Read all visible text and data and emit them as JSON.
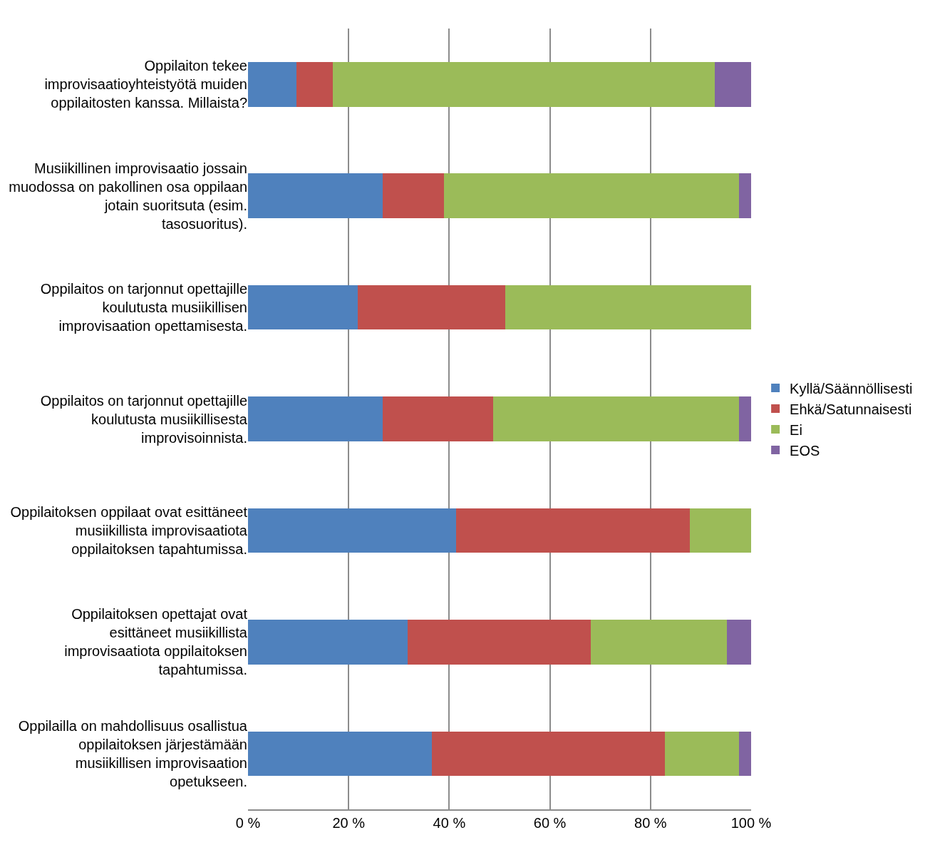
{
  "chart_data": {
    "type": "bar",
    "orientation": "horizontal",
    "stacked": true,
    "categories": [
      "Oppilaiton tekee improvisaatioyhteistyötä muiden oppilaitosten kanssa. Millaista?",
      "Musiikillinen improvisaatio jossain muodossa on pakollinen osa oppilaan jotain suoritsuta (esim. tasosuoritus).",
      "Oppilaitos on tarjonnut opettajille koulutusta musiikillisen improvisaation opettamisesta.",
      "Oppilaitos on tarjonnut opettajille koulutusta musiikillisesta improvisoinnista.",
      "Oppilaitoksen oppilaat ovat esittäneet musiikillista improvisaatiota oppilaitoksen tapahtumissa.",
      "Oppilaitoksen opettajat ovat esittäneet musiikillista improvisaatiota oppilaitoksen tapahtumissa.",
      "Oppilailla on mahdollisuus osallistua oppilaitoksen järjestämään musiikillisen improvisaation opetukseen."
    ],
    "series": [
      {
        "name": "Kyllä/Säännöllisesti",
        "color": "#4f81bd",
        "values": [
          9.6,
          26.7,
          21.8,
          26.8,
          41.4,
          31.7,
          36.5
        ]
      },
      {
        "name": "Ehkä/Satunnaisesti",
        "color": "#c0504d",
        "values": [
          7.3,
          12.2,
          29.3,
          21.9,
          46.4,
          36.5,
          46.3
        ]
      },
      {
        "name": "Ei",
        "color": "#9bbb59",
        "values": [
          75.9,
          58.7,
          48.9,
          48.9,
          12.2,
          27.0,
          14.8
        ]
      },
      {
        "name": "EOS",
        "color": "#8064a2",
        "values": [
          7.2,
          2.4,
          0,
          2.4,
          0,
          4.8,
          2.4
        ]
      }
    ],
    "xlim": [
      0,
      100
    ],
    "xticks": [
      {
        "value": 0,
        "label": "0 %"
      },
      {
        "value": 20,
        "label": "20 %"
      },
      {
        "value": 40,
        "label": "40 %"
      },
      {
        "value": 60,
        "label": "60 %"
      },
      {
        "value": 80,
        "label": "80 %"
      },
      {
        "value": 100,
        "label": "100 %"
      }
    ],
    "grid": "x",
    "legend": "right"
  }
}
